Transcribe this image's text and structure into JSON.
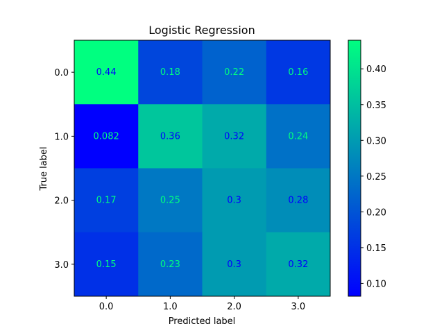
{
  "chart_data": {
    "type": "heatmap",
    "title": "Logistic Regression",
    "xlabel": "Predicted label",
    "ylabel": "True label",
    "x_categories": [
      "0.0",
      "1.0",
      "2.0",
      "3.0"
    ],
    "y_categories": [
      "0.0",
      "1.0",
      "2.0",
      "3.0"
    ],
    "values": [
      [
        0.44,
        0.18,
        0.22,
        0.16
      ],
      [
        0.082,
        0.36,
        0.32,
        0.24
      ],
      [
        0.17,
        0.25,
        0.3,
        0.28
      ],
      [
        0.15,
        0.23,
        0.3,
        0.32
      ]
    ],
    "labels": [
      [
        "0.44",
        "0.18",
        "0.22",
        "0.16"
      ],
      [
        "0.082",
        "0.36",
        "0.32",
        "0.24"
      ],
      [
        "0.17",
        "0.25",
        "0.3",
        "0.28"
      ],
      [
        "0.15",
        "0.23",
        "0.3",
        "0.32"
      ]
    ],
    "colormap": "winter",
    "color_range": [
      0.082,
      0.44
    ],
    "colorbar_ticks": [
      "0.10",
      "0.15",
      "0.20",
      "0.25",
      "0.30",
      "0.35",
      "0.40"
    ],
    "grid": false
  }
}
